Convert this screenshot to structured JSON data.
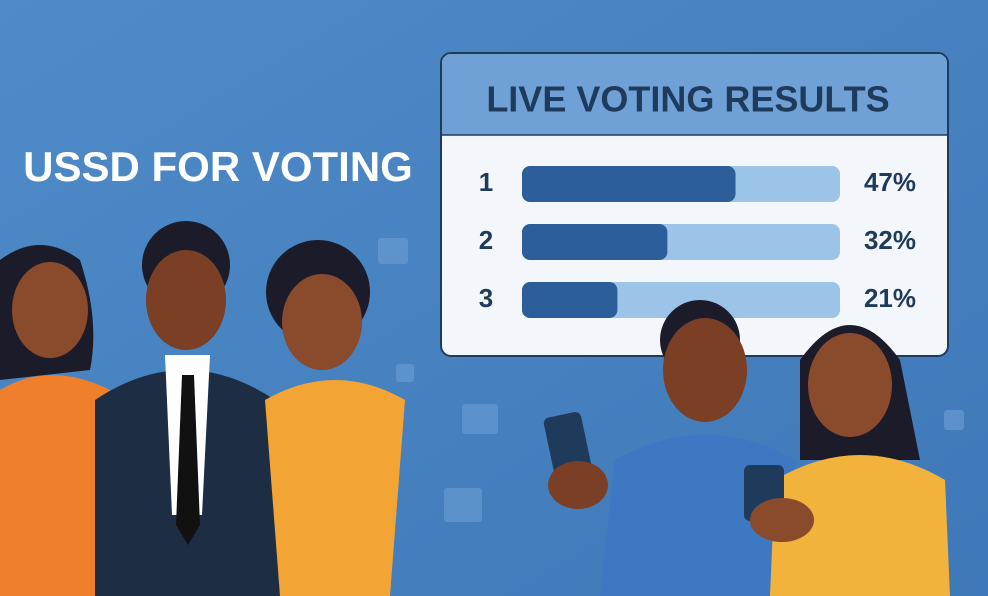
{
  "headline": "USSD FOR VOTING",
  "chart_data": {
    "type": "bar",
    "orientation": "horizontal",
    "title": "LIVE VOTING RESULTS",
    "categories": [
      "1",
      "2",
      "3"
    ],
    "values": [
      47,
      32,
      21
    ],
    "value_labels": [
      "47%",
      "32%",
      "21%"
    ],
    "xlim": [
      0,
      70
    ],
    "color": "#2c5f99",
    "track_color": "#9cc3e8"
  }
}
